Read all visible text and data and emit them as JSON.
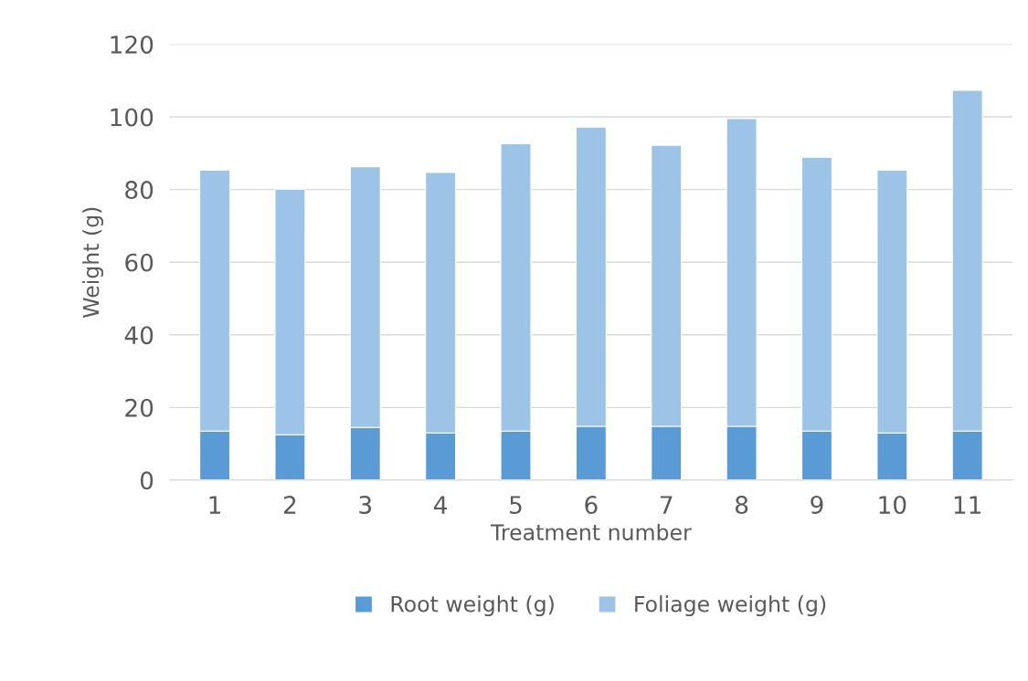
{
  "chart_data": {
    "type": "bar",
    "stacked": true,
    "xlabel": "Treatment number",
    "ylabel": "Weight (g)",
    "categories": [
      "1",
      "2",
      "3",
      "4",
      "5",
      "6",
      "7",
      "8",
      "9",
      "10",
      "11"
    ],
    "series": [
      {
        "name": "Root weight (g)",
        "color": "#5b9bd5",
        "values": [
          13.5,
          12.5,
          14.5,
          13,
          13.5,
          14.8,
          14.8,
          14.8,
          13.5,
          13,
          13.5
        ]
      },
      {
        "name": "Foliage weight (g)",
        "color": "#9dc3e6",
        "values": [
          71.8,
          67.6,
          71.8,
          71.7,
          79.1,
          82.4,
          77.4,
          84.7,
          75.4,
          72.3,
          93.8
        ]
      }
    ],
    "ylim": [
      0,
      120
    ],
    "yticks": [
      0,
      20,
      40,
      60,
      80,
      100,
      120
    ],
    "grid": "y",
    "legend": "bottom"
  }
}
